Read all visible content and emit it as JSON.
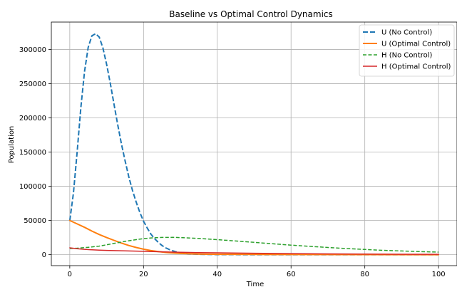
{
  "chart_data": {
    "type": "line",
    "title": "Baseline vs Optimal Control Dynamics",
    "xlabel": "Time",
    "ylabel": "Population",
    "xlim": [
      -5,
      105
    ],
    "ylim": [
      -16000,
      340000
    ],
    "xticks": [
      0,
      20,
      40,
      60,
      80,
      100
    ],
    "yticks": [
      0,
      50000,
      100000,
      150000,
      200000,
      250000,
      300000
    ],
    "xtick_labels": [
      "0",
      "20",
      "40",
      "60",
      "80",
      "100"
    ],
    "ytick_labels": [
      "0",
      "50000",
      "100000",
      "150000",
      "200000",
      "250000",
      "300000"
    ],
    "grid": true,
    "legend_position": "top-right",
    "series": [
      {
        "name": "U (No Control)",
        "color": "#1f77b4",
        "style": "dashed",
        "width": 2,
        "points": [
          [
            0,
            50000
          ],
          [
            1,
            90000
          ],
          [
            2,
            150000
          ],
          [
            3,
            215000
          ],
          [
            4,
            268000
          ],
          [
            5,
            303000
          ],
          [
            6,
            320000
          ],
          [
            7,
            323000
          ],
          [
            8,
            318000
          ],
          [
            9,
            302000
          ],
          [
            10,
            278000
          ],
          [
            11,
            250000
          ],
          [
            12,
            220000
          ],
          [
            13,
            190000
          ],
          [
            14,
            162000
          ],
          [
            15,
            137000
          ],
          [
            16,
            114000
          ],
          [
            17,
            94000
          ],
          [
            18,
            77000
          ],
          [
            19,
            62000
          ],
          [
            20,
            49000
          ],
          [
            21,
            39000
          ],
          [
            22,
            30000
          ],
          [
            23,
            23500
          ],
          [
            24,
            18000
          ],
          [
            25,
            13500
          ],
          [
            26,
            10000
          ],
          [
            27,
            7500
          ],
          [
            28,
            5500
          ],
          [
            29,
            4000
          ],
          [
            30,
            2800
          ],
          [
            32,
            1500
          ],
          [
            35,
            600
          ],
          [
            40,
            150
          ],
          [
            50,
            20
          ],
          [
            70,
            0
          ],
          [
            100,
            0
          ]
        ]
      },
      {
        "name": "U (Optimal Control)",
        "color": "#ff7f0e",
        "style": "solid",
        "width": 2,
        "points": [
          [
            0,
            50000
          ],
          [
            2,
            45000
          ],
          [
            4,
            40000
          ],
          [
            6,
            34500
          ],
          [
            8,
            29500
          ],
          [
            10,
            25000
          ],
          [
            12,
            21000
          ],
          [
            14,
            17000
          ],
          [
            16,
            13500
          ],
          [
            18,
            10500
          ],
          [
            20,
            8000
          ],
          [
            22,
            6000
          ],
          [
            24,
            4500
          ],
          [
            26,
            3300
          ],
          [
            28,
            2400
          ],
          [
            30,
            1800
          ],
          [
            35,
            1000
          ],
          [
            40,
            600
          ],
          [
            50,
            300
          ],
          [
            60,
            200
          ],
          [
            80,
            100
          ],
          [
            100,
            50
          ]
        ]
      },
      {
        "name": "H (No Control)",
        "color": "#2ca02c",
        "style": "dashed",
        "width": 1.5,
        "points": [
          [
            0,
            9000
          ],
          [
            2,
            9500
          ],
          [
            5,
            10800
          ],
          [
            8,
            12500
          ],
          [
            10,
            14500
          ],
          [
            12,
            16500
          ],
          [
            15,
            19500
          ],
          [
            18,
            22000
          ],
          [
            20,
            23500
          ],
          [
            22,
            24500
          ],
          [
            25,
            25200
          ],
          [
            28,
            25300
          ],
          [
            30,
            25000
          ],
          [
            35,
            23800
          ],
          [
            40,
            22000
          ],
          [
            45,
            20000
          ],
          [
            50,
            18000
          ],
          [
            55,
            16000
          ],
          [
            60,
            14000
          ],
          [
            65,
            12200
          ],
          [
            70,
            10500
          ],
          [
            75,
            9000
          ],
          [
            80,
            7600
          ],
          [
            85,
            6400
          ],
          [
            90,
            5400
          ],
          [
            95,
            4500
          ],
          [
            100,
            3800
          ]
        ]
      },
      {
        "name": "H (Optimal Control)",
        "color": "#d62728",
        "style": "solid",
        "width": 1.5,
        "points": [
          [
            0,
            10000
          ],
          [
            2,
            8800
          ],
          [
            4,
            7800
          ],
          [
            6,
            7100
          ],
          [
            8,
            6600
          ],
          [
            10,
            6300
          ],
          [
            12,
            6000
          ],
          [
            15,
            5600
          ],
          [
            18,
            5200
          ],
          [
            20,
            4900
          ],
          [
            25,
            4200
          ],
          [
            30,
            3600
          ],
          [
            35,
            3100
          ],
          [
            40,
            2700
          ],
          [
            50,
            2100
          ],
          [
            60,
            1600
          ],
          [
            70,
            1200
          ],
          [
            80,
            900
          ],
          [
            90,
            700
          ],
          [
            100,
            500
          ]
        ]
      }
    ]
  }
}
